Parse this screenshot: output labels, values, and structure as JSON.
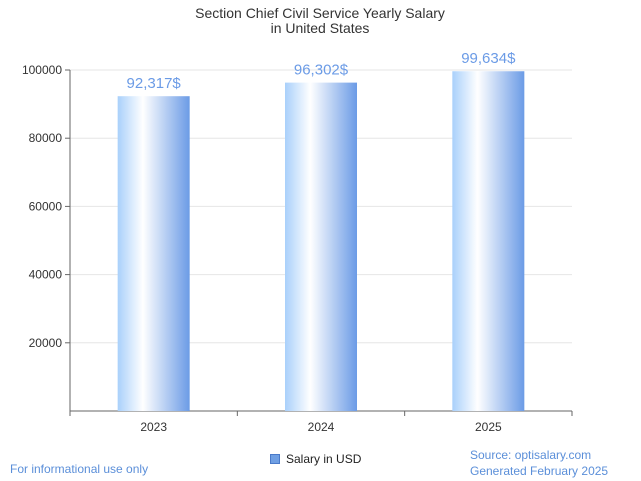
{
  "chart_data": {
    "type": "bar",
    "title_lines": [
      "Section Chief Civil Service Yearly Salary",
      "in United States"
    ],
    "categories": [
      "2023",
      "2024",
      "2025"
    ],
    "series": [
      {
        "name": "Salary in USD",
        "values": [
          92317,
          96302,
          99634
        ]
      }
    ],
    "value_labels": [
      "92,317$",
      "96,302$",
      "99,634$"
    ],
    "yticks": [
      20000,
      40000,
      60000,
      80000,
      100000
    ],
    "ylim": [
      0,
      100000
    ],
    "grid": true,
    "legend_position": "bottom"
  },
  "footer": {
    "disclaimer": "For informational use only",
    "source": "Source: optisalary.com",
    "generated": "Generated February 2025"
  },
  "colors": {
    "bar_light": "#ffffff",
    "bar_mid": "#a9d0fb",
    "bar_dark": "#6b9be6",
    "label": "#6b9be6"
  }
}
